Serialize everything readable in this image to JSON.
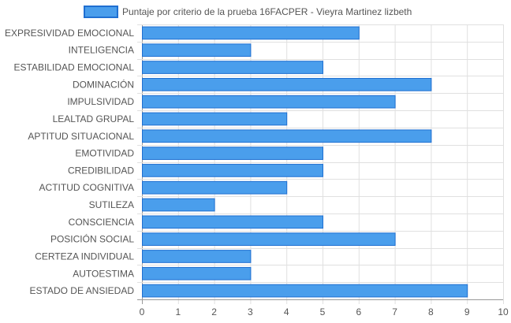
{
  "chart_data": {
    "type": "bar",
    "orientation": "horizontal",
    "title": "",
    "xlabel": "",
    "ylabel": "",
    "xlim": [
      0,
      10
    ],
    "x_ticks": [
      0,
      1,
      2,
      3,
      4,
      5,
      6,
      7,
      8,
      9,
      10
    ],
    "grid": true,
    "legend_position": "top-center",
    "categories": [
      "EXPRESIVIDAD EMOCIONAL",
      "INTELIGENCIA",
      "ESTABILIDAD EMOCIONAL",
      "DOMINACIÓN",
      "IMPULSIVIDAD",
      "LEALTAD GRUPAL",
      "APTITUD SITUACIONAL",
      "EMOTIVIDAD",
      "CREDIBILIDAD",
      "ACTITUD COGNITIVA",
      "SUTILEZA",
      "CONSCIENCIA",
      "POSICIÓN SOCIAL",
      "CERTEZA INDIVIDUAL",
      "AUTOESTIMA",
      "ESTADO DE ANSIEDAD"
    ],
    "series": [
      {
        "name": "Puntaje por criterio de la prueba 16FACPER -  Vieyra Martinez lizbeth",
        "values": [
          6,
          3,
          5,
          8,
          7,
          4,
          8,
          5,
          5,
          4,
          2,
          5,
          7,
          3,
          3,
          9
        ]
      }
    ]
  },
  "colors": {
    "bar_fill": "#4a9eec",
    "bar_stroke": "#1f6fd1",
    "grid": "#e0e0e0",
    "axis": "#999999",
    "text": "#555555"
  }
}
